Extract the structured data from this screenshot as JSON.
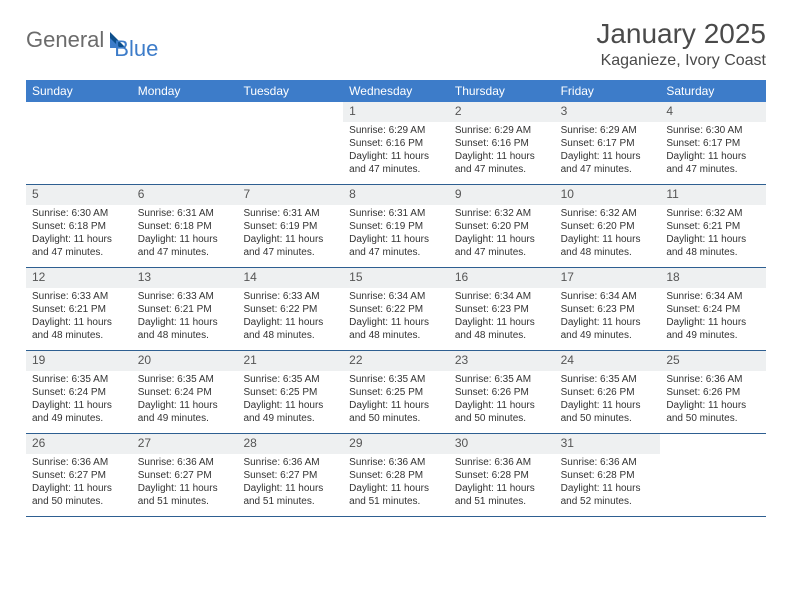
{
  "logo": {
    "part1": "General",
    "part2": "Blue"
  },
  "title": "January 2025",
  "location": "Kaganieze, Ivory Coast",
  "colors": {
    "header_bg": "#3d7cc9",
    "header_fg": "#ffffff",
    "daynum_bg": "#eef0f1",
    "week_divider": "#2e5f91",
    "text": "#333333",
    "logo_gray": "#6b6b6b",
    "logo_blue": "#3d7cc9"
  },
  "dow": [
    "Sunday",
    "Monday",
    "Tuesday",
    "Wednesday",
    "Thursday",
    "Friday",
    "Saturday"
  ],
  "sunrise_label": "Sunrise: ",
  "sunset_label": "Sunset: ",
  "daylight_label": "Daylight: ",
  "weeks": [
    [
      {
        "n": "",
        "sr": "",
        "ss": "",
        "dl": ""
      },
      {
        "n": "",
        "sr": "",
        "ss": "",
        "dl": ""
      },
      {
        "n": "",
        "sr": "",
        "ss": "",
        "dl": ""
      },
      {
        "n": "1",
        "sr": "6:29 AM",
        "ss": "6:16 PM",
        "dl": "11 hours and 47 minutes."
      },
      {
        "n": "2",
        "sr": "6:29 AM",
        "ss": "6:16 PM",
        "dl": "11 hours and 47 minutes."
      },
      {
        "n": "3",
        "sr": "6:29 AM",
        "ss": "6:17 PM",
        "dl": "11 hours and 47 minutes."
      },
      {
        "n": "4",
        "sr": "6:30 AM",
        "ss": "6:17 PM",
        "dl": "11 hours and 47 minutes."
      }
    ],
    [
      {
        "n": "5",
        "sr": "6:30 AM",
        "ss": "6:18 PM",
        "dl": "11 hours and 47 minutes."
      },
      {
        "n": "6",
        "sr": "6:31 AM",
        "ss": "6:18 PM",
        "dl": "11 hours and 47 minutes."
      },
      {
        "n": "7",
        "sr": "6:31 AM",
        "ss": "6:19 PM",
        "dl": "11 hours and 47 minutes."
      },
      {
        "n": "8",
        "sr": "6:31 AM",
        "ss": "6:19 PM",
        "dl": "11 hours and 47 minutes."
      },
      {
        "n": "9",
        "sr": "6:32 AM",
        "ss": "6:20 PM",
        "dl": "11 hours and 47 minutes."
      },
      {
        "n": "10",
        "sr": "6:32 AM",
        "ss": "6:20 PM",
        "dl": "11 hours and 48 minutes."
      },
      {
        "n": "11",
        "sr": "6:32 AM",
        "ss": "6:21 PM",
        "dl": "11 hours and 48 minutes."
      }
    ],
    [
      {
        "n": "12",
        "sr": "6:33 AM",
        "ss": "6:21 PM",
        "dl": "11 hours and 48 minutes."
      },
      {
        "n": "13",
        "sr": "6:33 AM",
        "ss": "6:21 PM",
        "dl": "11 hours and 48 minutes."
      },
      {
        "n": "14",
        "sr": "6:33 AM",
        "ss": "6:22 PM",
        "dl": "11 hours and 48 minutes."
      },
      {
        "n": "15",
        "sr": "6:34 AM",
        "ss": "6:22 PM",
        "dl": "11 hours and 48 minutes."
      },
      {
        "n": "16",
        "sr": "6:34 AM",
        "ss": "6:23 PM",
        "dl": "11 hours and 48 minutes."
      },
      {
        "n": "17",
        "sr": "6:34 AM",
        "ss": "6:23 PM",
        "dl": "11 hours and 49 minutes."
      },
      {
        "n": "18",
        "sr": "6:34 AM",
        "ss": "6:24 PM",
        "dl": "11 hours and 49 minutes."
      }
    ],
    [
      {
        "n": "19",
        "sr": "6:35 AM",
        "ss": "6:24 PM",
        "dl": "11 hours and 49 minutes."
      },
      {
        "n": "20",
        "sr": "6:35 AM",
        "ss": "6:24 PM",
        "dl": "11 hours and 49 minutes."
      },
      {
        "n": "21",
        "sr": "6:35 AM",
        "ss": "6:25 PM",
        "dl": "11 hours and 49 minutes."
      },
      {
        "n": "22",
        "sr": "6:35 AM",
        "ss": "6:25 PM",
        "dl": "11 hours and 50 minutes."
      },
      {
        "n": "23",
        "sr": "6:35 AM",
        "ss": "6:26 PM",
        "dl": "11 hours and 50 minutes."
      },
      {
        "n": "24",
        "sr": "6:35 AM",
        "ss": "6:26 PM",
        "dl": "11 hours and 50 minutes."
      },
      {
        "n": "25",
        "sr": "6:36 AM",
        "ss": "6:26 PM",
        "dl": "11 hours and 50 minutes."
      }
    ],
    [
      {
        "n": "26",
        "sr": "6:36 AM",
        "ss": "6:27 PM",
        "dl": "11 hours and 50 minutes."
      },
      {
        "n": "27",
        "sr": "6:36 AM",
        "ss": "6:27 PM",
        "dl": "11 hours and 51 minutes."
      },
      {
        "n": "28",
        "sr": "6:36 AM",
        "ss": "6:27 PM",
        "dl": "11 hours and 51 minutes."
      },
      {
        "n": "29",
        "sr": "6:36 AM",
        "ss": "6:28 PM",
        "dl": "11 hours and 51 minutes."
      },
      {
        "n": "30",
        "sr": "6:36 AM",
        "ss": "6:28 PM",
        "dl": "11 hours and 51 minutes."
      },
      {
        "n": "31",
        "sr": "6:36 AM",
        "ss": "6:28 PM",
        "dl": "11 hours and 52 minutes."
      },
      {
        "n": "",
        "sr": "",
        "ss": "",
        "dl": ""
      }
    ]
  ]
}
